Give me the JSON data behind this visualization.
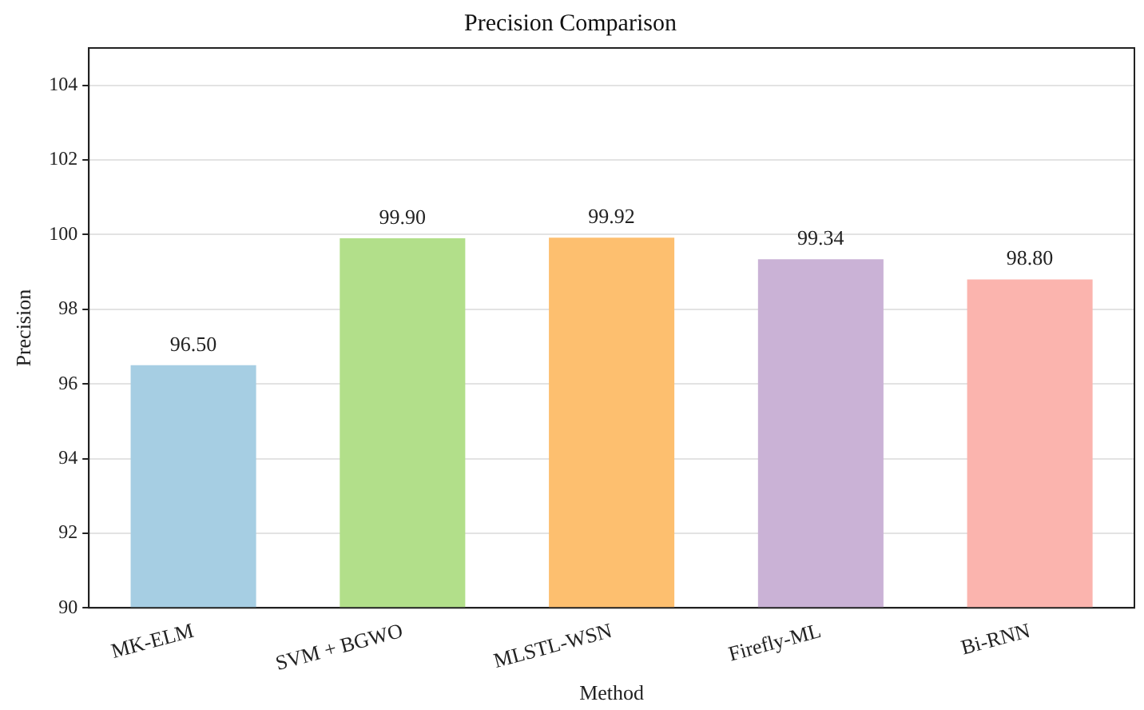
{
  "chart_data": {
    "type": "bar",
    "title": "Precision Comparison",
    "xlabel": "Method",
    "ylabel": "Precision",
    "categories": [
      "MK-ELM",
      "SVM + BGWO",
      "MLSTL-WSN",
      "Firefly-ML",
      "Bi-RNN"
    ],
    "values": [
      96.5,
      99.9,
      99.92,
      99.34,
      98.8
    ],
    "colors": [
      "#a6cee3",
      "#b2df8a",
      "#fdbf6f",
      "#cab2d6",
      "#fbb4ae"
    ],
    "value_labels": [
      "96.50",
      "99.90",
      "99.92",
      "99.34",
      "98.80"
    ],
    "ylim": [
      90,
      105
    ],
    "yticks": [
      90,
      92,
      94,
      96,
      98,
      100,
      102,
      104
    ],
    "grid": "y"
  }
}
